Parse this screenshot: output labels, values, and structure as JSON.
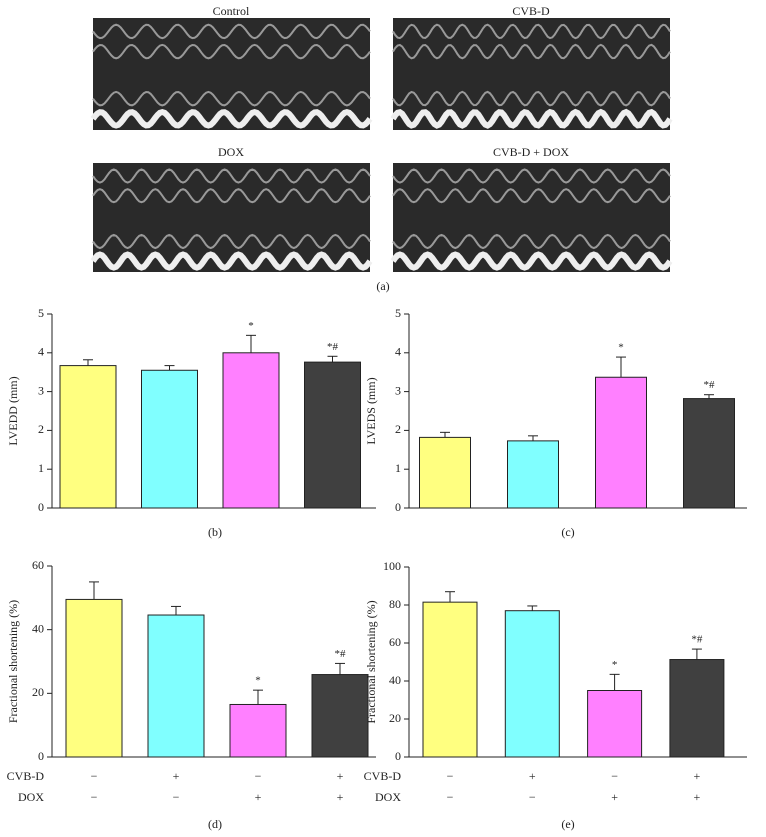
{
  "panel_a": {
    "labels": [
      "Control",
      "CVB-D",
      "DOX",
      "CVB-D + DOX"
    ],
    "caption": "(a)"
  },
  "chart_data": [
    {
      "type": "bar",
      "ylabel": "LVEDD (mm)",
      "caption": "(b)",
      "values": [
        3.67,
        3.55,
        4.0,
        3.76
      ],
      "errors": [
        0.15,
        0.12,
        0.45,
        0.15
      ],
      "annotations": [
        null,
        null,
        "*",
        "*#"
      ],
      "colors": [
        "#ffff80",
        "#80ffff",
        "#ff80ff",
        "#404040"
      ],
      "ylim": [
        0,
        5
      ],
      "yticks": [
        0,
        1,
        2,
        3,
        4,
        5
      ]
    },
    {
      "type": "bar",
      "ylabel": "LVEDS (mm)",
      "caption": "(c)",
      "values": [
        1.82,
        1.73,
        3.37,
        2.82
      ],
      "errors": [
        0.13,
        0.13,
        0.52,
        0.1
      ],
      "annotations": [
        null,
        null,
        "*",
        "*#"
      ],
      "colors": [
        "#ffff80",
        "#80ffff",
        "#ff80ff",
        "#404040"
      ],
      "ylim": [
        0,
        5
      ],
      "yticks": [
        0,
        1,
        2,
        3,
        4,
        5
      ]
    },
    {
      "type": "bar",
      "ylabel": "Fractional shortening (%)",
      "caption": "(d)",
      "values": [
        49.5,
        44.6,
        16.5,
        25.9
      ],
      "errors": [
        5.5,
        2.7,
        4.5,
        3.5
      ],
      "annotations": [
        null,
        null,
        "*",
        "*#"
      ],
      "colors": [
        "#ffff80",
        "#80ffff",
        "#ff80ff",
        "#404040"
      ],
      "ylim": [
        0,
        60
      ],
      "yticks": [
        0,
        20,
        40,
        60
      ],
      "conditions": [
        {
          "name": "CVB-D",
          "values": [
            "−",
            "+",
            "−",
            "+"
          ]
        },
        {
          "name": "DOX",
          "values": [
            "−",
            "−",
            "+",
            "+"
          ]
        }
      ]
    },
    {
      "type": "bar",
      "ylabel": "Fractional shortening (%)",
      "caption": "(e)",
      "values": [
        81.5,
        77,
        35,
        51.3
      ],
      "errors": [
        5.5,
        2.5,
        8.5,
        5.5
      ],
      "annotations": [
        null,
        null,
        "*",
        "*#"
      ],
      "colors": [
        "#ffff80",
        "#80ffff",
        "#ff80ff",
        "#404040"
      ],
      "ylim": [
        0,
        100
      ],
      "yticks": [
        0,
        20,
        40,
        60,
        80,
        100
      ],
      "conditions": [
        {
          "name": "CVB-D",
          "values": [
            "−",
            "+",
            "−",
            "+"
          ]
        },
        {
          "name": "DOX",
          "values": [
            "−",
            "−",
            "+",
            "+"
          ]
        }
      ]
    }
  ]
}
